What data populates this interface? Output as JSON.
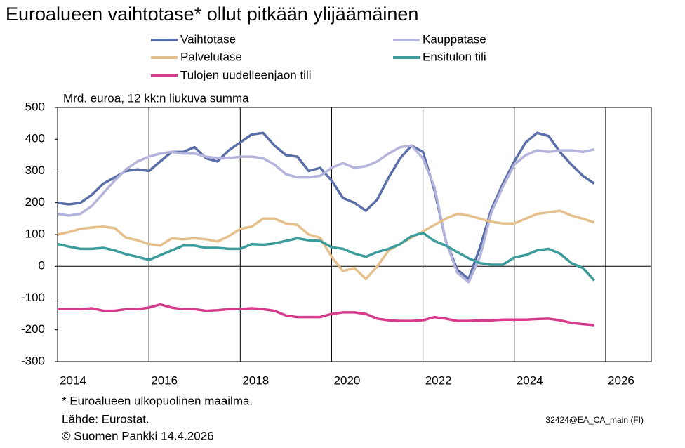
{
  "chart_data": {
    "type": "line",
    "title": "Euroalueen vaihtotase* ollut pitkään ylijäämäinen",
    "y_label": "Mrd. euroa, 12 kk:n liukuva summa",
    "footnote": "* Euroalueen ulkopuolinen maailma.",
    "source": "Lähde: Eurostat.",
    "copyright": "© Suomen Pankki 14.4.2026",
    "code": "32424@EA_CA_main (FI)",
    "x": [
      2014,
      2014.25,
      2014.5,
      2014.75,
      2015,
      2015.25,
      2015.5,
      2015.75,
      2016,
      2016.25,
      2016.5,
      2016.75,
      2017,
      2017.25,
      2017.5,
      2017.75,
      2018,
      2018.25,
      2018.5,
      2018.75,
      2019,
      2019.25,
      2019.5,
      2019.75,
      2020,
      2020.25,
      2020.5,
      2020.75,
      2021,
      2021.25,
      2021.5,
      2021.75,
      2022,
      2022.25,
      2022.5,
      2022.75,
      2023,
      2023.25,
      2023.5,
      2023.75,
      2024,
      2024.25,
      2024.5,
      2024.75,
      2025,
      2025.25,
      2025.5,
      2025.75
    ],
    "series": [
      {
        "name": "Vaihtotase",
        "color": "#5a6ea8",
        "values": [
          200,
          195,
          200,
          225,
          260,
          280,
          300,
          305,
          300,
          330,
          360,
          360,
          375,
          340,
          330,
          365,
          390,
          415,
          420,
          380,
          350,
          345,
          300,
          310,
          270,
          215,
          200,
          175,
          210,
          280,
          340,
          380,
          360,
          240,
          80,
          -10,
          -40,
          60,
          180,
          260,
          330,
          390,
          420,
          410,
          360,
          320,
          285,
          260
        ]
      },
      {
        "name": "Kauppatase",
        "color": "#b4b4dc",
        "values": [
          165,
          160,
          165,
          190,
          230,
          270,
          305,
          330,
          345,
          355,
          360,
          355,
          355,
          345,
          340,
          340,
          345,
          345,
          340,
          320,
          290,
          280,
          280,
          285,
          310,
          325,
          310,
          315,
          330,
          355,
          375,
          380,
          340,
          250,
          80,
          -20,
          -50,
          30,
          170,
          250,
          320,
          350,
          365,
          360,
          365,
          365,
          360,
          368
        ]
      },
      {
        "name": "Palvelutase",
        "color": "#e6c08c",
        "values": [
          100,
          108,
          118,
          122,
          125,
          120,
          90,
          82,
          70,
          65,
          88,
          85,
          88,
          85,
          78,
          95,
          118,
          125,
          150,
          150,
          135,
          130,
          100,
          90,
          30,
          -15,
          -5,
          -40,
          0,
          50,
          70,
          90,
          110,
          130,
          150,
          165,
          160,
          150,
          140,
          135,
          135,
          150,
          165,
          170,
          175,
          160,
          150,
          138
        ]
      },
      {
        "name": "Ensitulon tili",
        "color": "#3c9c9c",
        "values": [
          70,
          62,
          55,
          55,
          58,
          50,
          38,
          30,
          20,
          35,
          50,
          65,
          65,
          58,
          58,
          55,
          55,
          70,
          68,
          72,
          80,
          88,
          82,
          80,
          60,
          55,
          40,
          30,
          45,
          55,
          70,
          95,
          105,
          80,
          65,
          45,
          25,
          10,
          5,
          5,
          28,
          35,
          50,
          55,
          40,
          10,
          -5,
          -45
        ]
      },
      {
        "name": "Tulojen uudelleenjaon tili",
        "color": "#d63c8c",
        "values": [
          -135,
          -135,
          -135,
          -132,
          -140,
          -140,
          -135,
          -135,
          -130,
          -120,
          -130,
          -135,
          -135,
          -140,
          -138,
          -135,
          -135,
          -132,
          -135,
          -140,
          -155,
          -160,
          -160,
          -160,
          -150,
          -145,
          -145,
          -150,
          -165,
          -170,
          -172,
          -172,
          -170,
          -160,
          -165,
          -172,
          -172,
          -170,
          -170,
          -168,
          -168,
          -168,
          -166,
          -165,
          -170,
          -178,
          -182,
          -185
        ]
      }
    ],
    "xlim": [
      2014,
      2027
    ],
    "xticks": [
      2014,
      2016,
      2018,
      2020,
      2022,
      2024,
      2026
    ],
    "ylim": [
      -300,
      500
    ],
    "yticks": [
      -300,
      -200,
      -100,
      0,
      100,
      200,
      300,
      400,
      500
    ],
    "grid": true
  }
}
